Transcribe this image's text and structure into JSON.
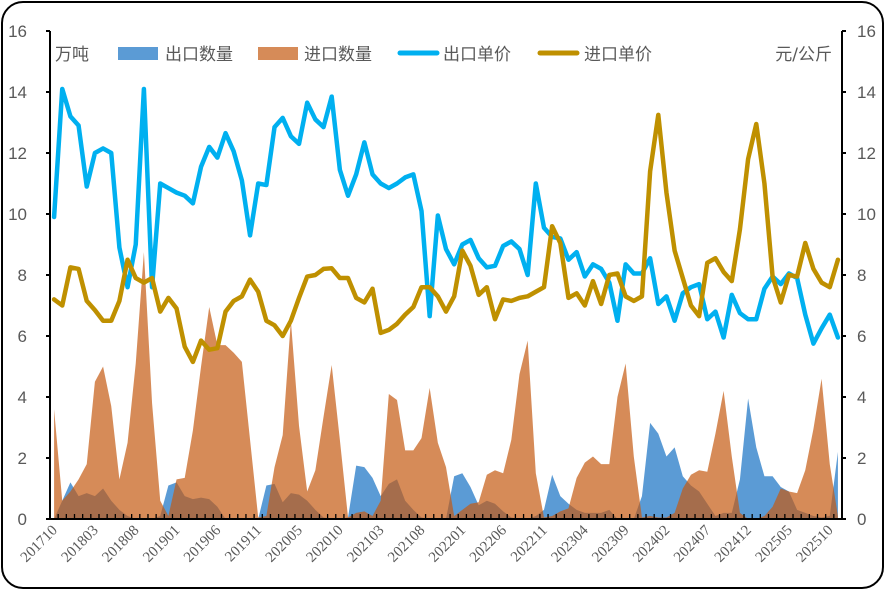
{
  "chart_data": {
    "type": "area+line",
    "left_axis": {
      "unit_label": "万吨",
      "ylim": [
        0,
        16
      ],
      "ticks": [
        "0",
        "2",
        "4",
        "6",
        "8",
        "10",
        "12",
        "14",
        "16"
      ]
    },
    "right_axis": {
      "unit_label": "元/公斤",
      "ylim": [
        0,
        16
      ],
      "ticks": [
        "0",
        "2",
        "4",
        "6",
        "8",
        "10",
        "12",
        "14",
        "16"
      ]
    },
    "grid": false,
    "legend": {
      "placement": "top",
      "items": [
        "出口数量",
        "进口数量",
        "出口单价",
        "进口单价"
      ]
    },
    "categories": [
      "201710",
      "201711",
      "201712",
      "201801",
      "201802",
      "201803",
      "201804",
      "201805",
      "201806",
      "201807",
      "201808",
      "201809",
      "201810",
      "201811",
      "201812",
      "201901",
      "201902",
      "201903",
      "201904",
      "201905",
      "201906",
      "201907",
      "201908",
      "201909",
      "201910",
      "201911",
      "201912",
      "202001",
      "202003",
      "202004",
      "202005",
      "202006",
      "202007",
      "202008",
      "202009",
      "202010",
      "202011",
      "202012",
      "202101",
      "202102",
      "202103",
      "202104",
      "202105",
      "202106",
      "202107",
      "202108",
      "202109",
      "202110",
      "202111",
      "202112",
      "202201",
      "202202",
      "202203",
      "202204",
      "202205",
      "202206",
      "202207",
      "202208",
      "202209",
      "202210",
      "202211",
      "202212",
      "202301",
      "202302",
      "202303",
      "202304",
      "202305",
      "202306",
      "202307",
      "202308",
      "202309",
      "202310",
      "202311",
      "202312",
      "202401",
      "202402",
      "202403",
      "202404",
      "202405",
      "202406",
      "202407",
      "202408",
      "202409",
      "202410",
      "202411",
      "202412",
      "202501",
      "202502",
      "202503",
      "202504",
      "202505",
      "202506",
      "202507",
      "202508",
      "202509",
      "202510",
      "202511"
    ],
    "x_tick_labels": [
      "201710",
      "201803",
      "201808",
      "201901",
      "201906",
      "201911",
      "202005",
      "202010",
      "202103",
      "202108",
      "202201",
      "202206",
      "202211",
      "202304",
      "202309",
      "202402",
      "202407",
      "202412",
      "202505",
      "202510"
    ],
    "series": [
      {
        "name": "出口数量",
        "type": "area",
        "axis": "left",
        "color": "#5B9BD5",
        "values": [
          0,
          0.6,
          1.2,
          0.75,
          0.85,
          0.75,
          1.0,
          0.6,
          0.3,
          0.1,
          0,
          0,
          0,
          0.1,
          1.1,
          1.2,
          0.75,
          0.65,
          0.7,
          0.65,
          0.4,
          0,
          0,
          0,
          0,
          0,
          1.1,
          1.15,
          0.55,
          0.85,
          0.8,
          0.6,
          0.3,
          0.05,
          0,
          0,
          0.05,
          1.75,
          1.7,
          1.35,
          0.75,
          1.15,
          1.3,
          0.6,
          0.3,
          0.05,
          0,
          0,
          0,
          1.4,
          1.5,
          1.05,
          0.45,
          0.6,
          0.5,
          0.25,
          0.05,
          0,
          0,
          0.1,
          0.3,
          1.45,
          0.75,
          0.5,
          0.3,
          0.2,
          0.2,
          0.2,
          0.3,
          0,
          0,
          0,
          0.75,
          3.15,
          2.8,
          2.05,
          2.35,
          1.4,
          1.1,
          0.9,
          0.5,
          0.1,
          0.2,
          0.2,
          1.3,
          3.95,
          2.35,
          1.4,
          1.4,
          1.05,
          0.9,
          0.3,
          0.2,
          0.1,
          0.05,
          0.1,
          2.2
        ]
      },
      {
        "name": "进口数量",
        "type": "area",
        "axis": "left",
        "color": "#C55A11",
        "values": [
          3.6,
          0.6,
          0.9,
          1.3,
          1.8,
          4.5,
          5.0,
          3.7,
          1.3,
          2.5,
          5.1,
          8.75,
          3.8,
          0.6,
          0.1,
          1.3,
          1.35,
          2.9,
          5.0,
          6.95,
          5.7,
          5.7,
          5.45,
          5.15,
          2.6,
          0.05,
          0.1,
          1.7,
          2.75,
          6.5,
          3.05,
          0.9,
          1.6,
          3.35,
          5.05,
          2.6,
          0.05,
          0.2,
          0.25,
          0.1,
          0.6,
          4.1,
          3.9,
          2.25,
          2.25,
          2.65,
          4.3,
          2.5,
          1.7,
          0.1,
          0.3,
          0.5,
          0.55,
          1.45,
          1.6,
          1.5,
          2.6,
          4.75,
          5.85,
          1.5,
          0.05,
          0.1,
          0.25,
          0.35,
          1.35,
          1.85,
          2.05,
          1.8,
          1.8,
          4.0,
          5.1,
          2.05,
          0.05,
          0.1,
          0.05,
          0.05,
          0.2,
          1.0,
          1.45,
          1.6,
          1.55,
          2.8,
          4.2,
          2.05,
          0.2,
          0,
          0,
          0.1,
          0.4,
          1.0,
          0.9,
          0.85,
          1.6,
          2.95,
          4.6,
          1.8,
          0.1
        ]
      },
      {
        "name": "出口单价",
        "type": "line",
        "axis": "right",
        "color": "#00B0F0",
        "values": [
          9.9,
          14.1,
          13.2,
          12.9,
          10.9,
          12.0,
          12.15,
          12.0,
          8.9,
          7.6,
          9.0,
          14.1,
          7.6,
          11.0,
          10.85,
          10.7,
          10.6,
          10.35,
          11.55,
          12.2,
          11.85,
          12.65,
          12.05,
          11.1,
          9.3,
          11.0,
          10.95,
          12.85,
          13.15,
          12.55,
          12.3,
          13.65,
          13.1,
          12.85,
          13.85,
          11.45,
          10.6,
          11.3,
          12.35,
          11.3,
          11.0,
          10.85,
          11.0,
          11.2,
          11.3,
          10.1,
          6.65,
          9.95,
          8.85,
          8.35,
          9.0,
          9.15,
          8.55,
          8.25,
          8.3,
          8.95,
          9.1,
          8.85,
          8.0,
          11.0,
          9.55,
          9.25,
          9.2,
          8.5,
          8.75,
          7.95,
          8.35,
          8.2,
          7.75,
          6.5,
          8.35,
          8.05,
          8.05,
          8.55,
          7.05,
          7.3,
          6.5,
          7.4,
          7.6,
          7.7,
          6.55,
          6.8,
          5.95,
          7.35,
          6.75,
          6.55,
          6.55,
          7.55,
          7.95,
          7.7,
          8.05,
          7.9,
          6.7,
          5.75,
          6.25,
          6.7,
          5.95
        ]
      },
      {
        "name": "进口单价",
        "type": "line",
        "axis": "right",
        "color": "#BF9000",
        "values": [
          7.2,
          7.0,
          8.25,
          8.2,
          7.15,
          6.85,
          6.5,
          6.5,
          7.15,
          8.5,
          7.9,
          7.75,
          7.9,
          6.8,
          7.25,
          6.9,
          5.65,
          5.15,
          5.85,
          5.55,
          5.6,
          6.8,
          7.15,
          7.3,
          7.85,
          7.45,
          6.5,
          6.35,
          6.0,
          6.5,
          7.25,
          7.95,
          8.0,
          8.2,
          8.22,
          7.9,
          7.9,
          7.25,
          7.1,
          7.55,
          6.1,
          6.2,
          6.4,
          6.7,
          6.95,
          7.6,
          7.6,
          7.3,
          6.8,
          7.3,
          8.8,
          8.3,
          7.35,
          7.6,
          6.55,
          7.2,
          7.15,
          7.25,
          7.3,
          7.45,
          7.6,
          9.6,
          9.05,
          7.25,
          7.4,
          7.0,
          7.8,
          7.05,
          8.0,
          8.05,
          7.3,
          7.15,
          7.3,
          11.4,
          13.25,
          10.7,
          8.8,
          7.9,
          7.0,
          6.65,
          8.4,
          8.55,
          8.1,
          7.8,
          9.5,
          11.8,
          12.95,
          11.0,
          7.95,
          7.1,
          8.0,
          7.95,
          9.05,
          8.2,
          7.75,
          7.6,
          8.5
        ]
      }
    ]
  }
}
